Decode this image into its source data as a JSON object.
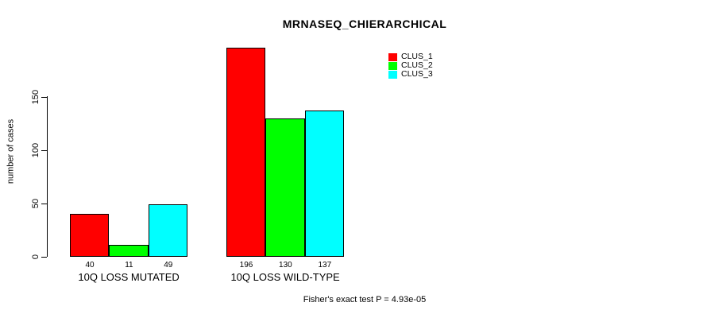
{
  "title": "MRNASEQ_CHIERARCHICAL",
  "chart_data": {
    "type": "bar",
    "categories": [
      "10Q LOSS MUTATED",
      "10Q LOSS WILD-TYPE"
    ],
    "series": [
      {
        "name": "CLUS_1",
        "color": "#ff0000",
        "values": [
          40,
          196
        ]
      },
      {
        "name": "CLUS_2",
        "color": "#00ff00",
        "values": [
          11,
          130
        ]
      },
      {
        "name": "CLUS_3",
        "color": "#00ffff",
        "values": [
          49,
          137
        ]
      }
    ],
    "ylabel": "number of cases",
    "yticks": [
      0,
      50,
      100,
      150
    ],
    "ylim": [
      0,
      198
    ],
    "grid": false,
    "legend_position": "top-right",
    "bar_value_labels": true,
    "annotation": "Fisher's exact test P = 4.93e-05"
  }
}
